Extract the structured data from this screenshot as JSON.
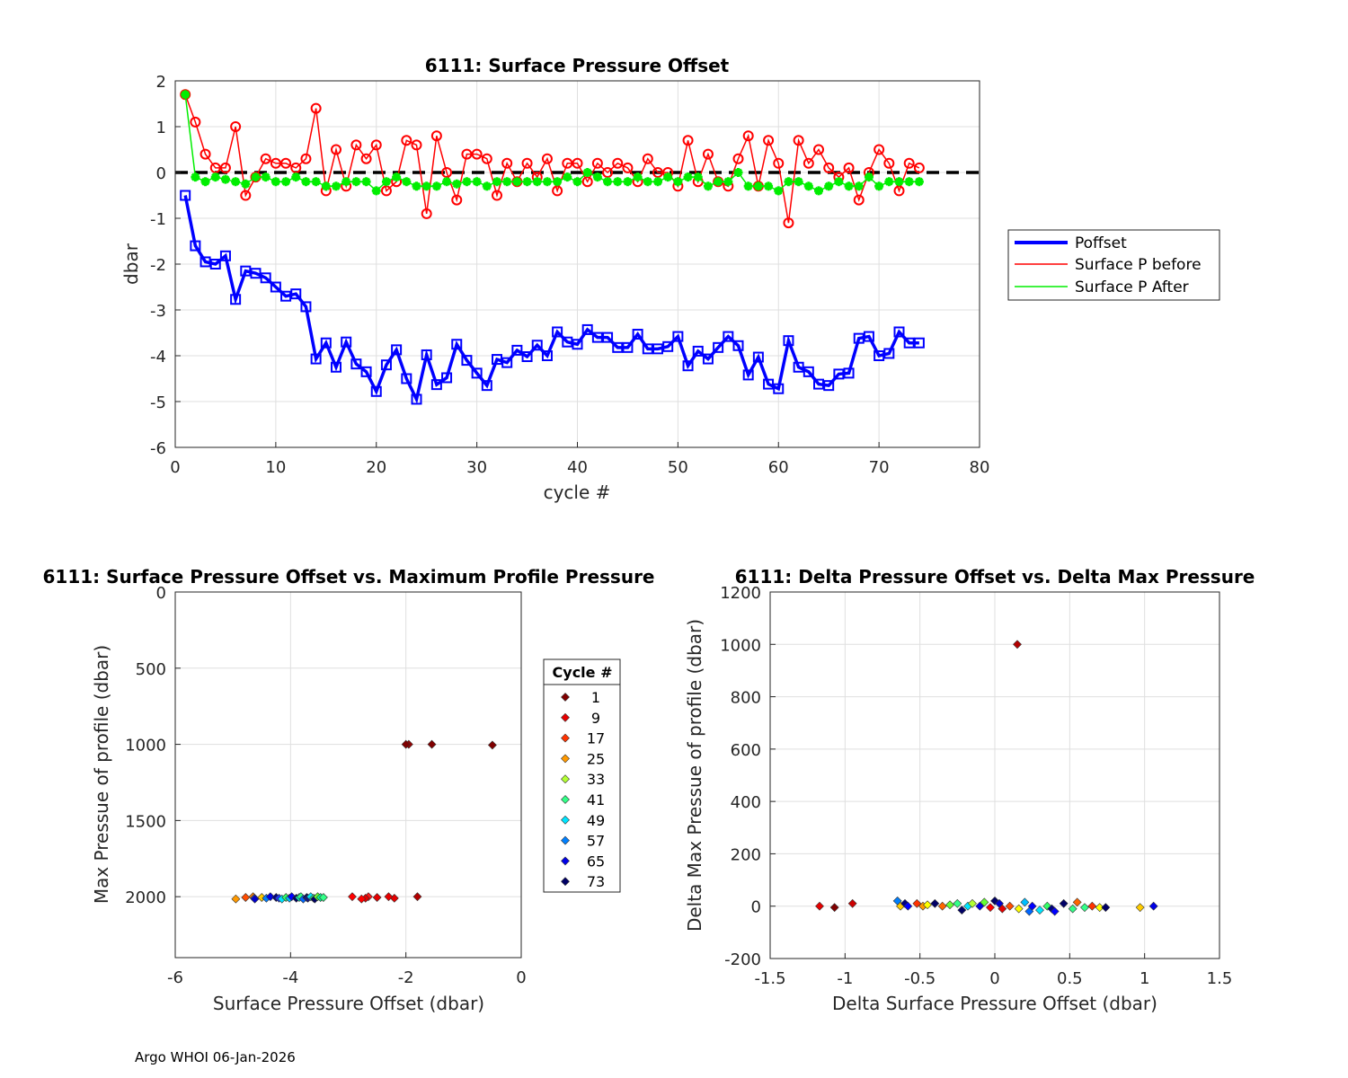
{
  "footer": "Argo WHOI 06-Jan-2026",
  "chart_data": [
    {
      "type": "line",
      "title": "6111: Surface Pressure Offset",
      "xlabel": "cycle #",
      "ylabel": "dbar",
      "xlim": [
        0,
        80
      ],
      "ylim": [
        -6,
        2
      ],
      "xticks": [
        0,
        10,
        20,
        30,
        40,
        50,
        60,
        70,
        80
      ],
      "yticks": [
        2,
        1,
        0,
        -1,
        -2,
        -3,
        -4,
        -5,
        -6
      ],
      "grid": true,
      "zero_line": 0,
      "legend_position": "right",
      "x": [
        1,
        2,
        3,
        4,
        5,
        6,
        7,
        8,
        9,
        10,
        11,
        12,
        13,
        14,
        15,
        16,
        17,
        18,
        19,
        20,
        21,
        22,
        23,
        24,
        25,
        26,
        27,
        28,
        29,
        30,
        31,
        32,
        33,
        34,
        35,
        36,
        37,
        38,
        39,
        40,
        41,
        42,
        43,
        44,
        45,
        46,
        47,
        48,
        49,
        50,
        51,
        52,
        53,
        54,
        55,
        56,
        57,
        58,
        59,
        60,
        61,
        62,
        63,
        64,
        65,
        66,
        67,
        68,
        69,
        70,
        71,
        72,
        73,
        74
      ],
      "series": [
        {
          "name": "Poffset",
          "color": "#0000ff",
          "marker": "square",
          "values": [
            -0.5,
            -1.6,
            -1.95,
            -2.0,
            -1.82,
            -2.77,
            -2.15,
            -2.2,
            -2.3,
            -2.5,
            -2.7,
            -2.65,
            -2.93,
            -4.07,
            -3.72,
            -4.25,
            -3.7,
            -4.18,
            -4.35,
            -4.78,
            -4.2,
            -3.87,
            -4.5,
            -4.95,
            -3.98,
            -4.63,
            -4.48,
            -3.75,
            -4.1,
            -4.38,
            -4.65,
            -4.08,
            -4.15,
            -3.88,
            -4.02,
            -3.77,
            -4.0,
            -3.48,
            -3.7,
            -3.75,
            -3.43,
            -3.6,
            -3.6,
            -3.82,
            -3.82,
            -3.53,
            -3.85,
            -3.85,
            -3.8,
            -3.58,
            -4.22,
            -3.9,
            -4.07,
            -3.82,
            -3.58,
            -3.78,
            -4.42,
            -4.03,
            -4.62,
            -4.72,
            -3.67,
            -4.25,
            -4.35,
            -4.62,
            -4.65,
            -4.4,
            -4.38,
            -3.62,
            -3.58,
            -4.0,
            -3.95,
            -3.48,
            -3.72,
            -3.72
          ]
        },
        {
          "name": "Surface P before",
          "color": "#ff0000",
          "marker": "circle",
          "values": [
            1.7,
            1.1,
            0.4,
            0.1,
            0.1,
            1.0,
            -0.5,
            -0.1,
            0.3,
            0.2,
            0.2,
            0.1,
            0.3,
            1.4,
            -0.4,
            0.5,
            -0.3,
            0.6,
            0.3,
            0.6,
            -0.4,
            -0.2,
            0.7,
            0.6,
            -0.9,
            0.8,
            0.0,
            -0.6,
            0.4,
            0.4,
            0.3,
            -0.5,
            0.2,
            -0.2,
            0.2,
            -0.1,
            0.3,
            -0.4,
            0.2,
            0.2,
            -0.2,
            0.2,
            0.0,
            0.2,
            0.1,
            -0.2,
            0.3,
            0.0,
            0.0,
            -0.3,
            0.7,
            -0.2,
            0.4,
            -0.2,
            -0.3,
            0.3,
            0.8,
            -0.3,
            0.7,
            0.2,
            -1.1,
            0.7,
            0.2,
            0.5,
            0.1,
            -0.1,
            0.1,
            -0.6,
            0.0,
            0.5,
            0.2,
            -0.4,
            0.2,
            0.1
          ]
        },
        {
          "name": "Surface P After",
          "color": "#00ee00",
          "marker": "star",
          "values": [
            1.7,
            -0.1,
            -0.2,
            -0.1,
            -0.15,
            -0.2,
            -0.25,
            -0.1,
            -0.1,
            -0.2,
            -0.2,
            -0.1,
            -0.2,
            -0.2,
            -0.3,
            -0.3,
            -0.2,
            -0.2,
            -0.2,
            -0.4,
            -0.2,
            -0.1,
            -0.2,
            -0.3,
            -0.3,
            -0.3,
            -0.2,
            -0.25,
            -0.2,
            -0.2,
            -0.3,
            -0.2,
            -0.2,
            -0.2,
            -0.2,
            -0.2,
            -0.2,
            -0.2,
            -0.1,
            -0.2,
            0.0,
            -0.1,
            -0.2,
            -0.2,
            -0.2,
            -0.1,
            -0.2,
            -0.2,
            -0.1,
            -0.2,
            -0.1,
            -0.1,
            -0.3,
            -0.2,
            -0.2,
            0.0,
            -0.3,
            -0.3,
            -0.3,
            -0.4,
            -0.2,
            -0.2,
            -0.3,
            -0.4,
            -0.3,
            -0.2,
            -0.3,
            -0.3,
            -0.1,
            -0.3,
            -0.2,
            -0.2,
            -0.2,
            -0.2
          ]
        }
      ]
    },
    {
      "type": "scatter",
      "title": "6111: Surface Pressure Offset vs. Maximum Profile Pressure",
      "xlabel": "Surface Pressure Offset (dbar)",
      "ylabel": "Max Pressue of profile (dbar)",
      "xlim": [
        -6,
        0
      ],
      "ylim": [
        2400,
        0
      ],
      "y_reversed": true,
      "xticks": [
        -6,
        -4,
        -2,
        0
      ],
      "yticks": [
        0,
        500,
        1000,
        1500,
        2000
      ],
      "grid": true,
      "legend_title": "Cycle #",
      "legend_position": "right",
      "legend": [
        {
          "label": "1",
          "color": "#800000"
        },
        {
          "label": "9",
          "color": "#e60000"
        },
        {
          "label": "17",
          "color": "#ff3300"
        },
        {
          "label": "25",
          "color": "#ff9900"
        },
        {
          "label": "33",
          "color": "#b3ff33"
        },
        {
          "label": "41",
          "color": "#33ff88"
        },
        {
          "label": "49",
          "color": "#00e5ff"
        },
        {
          "label": "57",
          "color": "#0080ff"
        },
        {
          "label": "65",
          "color": "#0000e6"
        },
        {
          "label": "73",
          "color": "#000066"
        }
      ],
      "points": [
        {
          "x": -0.5,
          "y": 1005,
          "color": "#800000"
        },
        {
          "x": -1.55,
          "y": 1000,
          "color": "#800000"
        },
        {
          "x": -1.95,
          "y": 1000,
          "color": "#990000"
        },
        {
          "x": -2.0,
          "y": 1000,
          "color": "#800000"
        },
        {
          "x": -1.8,
          "y": 2000,
          "color": "#b30000"
        },
        {
          "x": -2.2,
          "y": 2010,
          "color": "#e60000"
        },
        {
          "x": -2.3,
          "y": 2000,
          "color": "#e60000"
        },
        {
          "x": -2.5,
          "y": 2005,
          "color": "#e60000"
        },
        {
          "x": -2.65,
          "y": 2000,
          "color": "#ff1a1a"
        },
        {
          "x": -2.7,
          "y": 2010,
          "color": "#e60000"
        },
        {
          "x": -2.77,
          "y": 2015,
          "color": "#ff0000"
        },
        {
          "x": -2.93,
          "y": 2000,
          "color": "#ff0000"
        },
        {
          "x": -4.95,
          "y": 2015,
          "color": "#ff9900"
        },
        {
          "x": -4.78,
          "y": 2005,
          "color": "#ff4d00"
        },
        {
          "x": -4.65,
          "y": 2000,
          "color": "#ff8000"
        },
        {
          "x": -4.63,
          "y": 2010,
          "color": "#3366ff"
        },
        {
          "x": -4.62,
          "y": 2015,
          "color": "#0000cc"
        },
        {
          "x": -4.5,
          "y": 2005,
          "color": "#ffcc00"
        },
        {
          "x": -4.42,
          "y": 2010,
          "color": "#0080ff"
        },
        {
          "x": -4.35,
          "y": 2000,
          "color": "#0000e6"
        },
        {
          "x": -4.25,
          "y": 2005,
          "color": "#000080"
        },
        {
          "x": -4.2,
          "y": 2010,
          "color": "#1a33ff"
        },
        {
          "x": -4.15,
          "y": 2015,
          "color": "#00e5ff"
        },
        {
          "x": -4.08,
          "y": 2005,
          "color": "#33ff66"
        },
        {
          "x": -4.02,
          "y": 2010,
          "color": "#00bfff"
        },
        {
          "x": -3.98,
          "y": 2000,
          "color": "#0000ff"
        },
        {
          "x": -3.9,
          "y": 2010,
          "color": "#000066"
        },
        {
          "x": -3.85,
          "y": 2005,
          "color": "#00ffcc"
        },
        {
          "x": -3.82,
          "y": 2000,
          "color": "#33ff88"
        },
        {
          "x": -3.78,
          "y": 2015,
          "color": "#0066ff"
        },
        {
          "x": -3.72,
          "y": 2005,
          "color": "#000066"
        },
        {
          "x": -3.7,
          "y": 2010,
          "color": "#1a1a80"
        },
        {
          "x": -3.65,
          "y": 2000,
          "color": "#00e5ff"
        },
        {
          "x": -3.6,
          "y": 2010,
          "color": "#33ff88"
        },
        {
          "x": -3.58,
          "y": 2015,
          "color": "#000066"
        },
        {
          "x": -3.53,
          "y": 2000,
          "color": "#66ff33"
        },
        {
          "x": -3.48,
          "y": 2005,
          "color": "#00ff99"
        },
        {
          "x": -3.43,
          "y": 2005,
          "color": "#33ff88"
        }
      ]
    },
    {
      "type": "scatter",
      "title": "6111: Delta Pressure Offset vs. Delta Max Pressure",
      "xlabel": "Delta Surface Pressure Offset (dbar)",
      "ylabel": "Delta Max Pressue of profile (dbar)",
      "xlim": [
        -1.5,
        1.5
      ],
      "ylim": [
        -200,
        1200
      ],
      "xticks": [
        -1.5,
        -1,
        -0.5,
        0,
        0.5,
        1,
        1.5
      ],
      "yticks": [
        1200,
        1000,
        800,
        600,
        400,
        200,
        0,
        -200
      ],
      "grid": true,
      "points": [
        {
          "x": 0.15,
          "y": 1000,
          "color": "#b30000"
        },
        {
          "x": -1.17,
          "y": 0,
          "color": "#e60000"
        },
        {
          "x": -1.07,
          "y": -5,
          "color": "#800000"
        },
        {
          "x": -0.95,
          "y": 10,
          "color": "#cc0000"
        },
        {
          "x": -0.65,
          "y": 20,
          "color": "#0080ff"
        },
        {
          "x": -0.63,
          "y": 0,
          "color": "#ffcc00"
        },
        {
          "x": -0.6,
          "y": 10,
          "color": "#000080"
        },
        {
          "x": -0.58,
          "y": 0,
          "color": "#0000ff"
        },
        {
          "x": -0.52,
          "y": 10,
          "color": "#ff3300"
        },
        {
          "x": -0.48,
          "y": 0,
          "color": "#ff9900"
        },
        {
          "x": -0.45,
          "y": 5,
          "color": "#ffff00"
        },
        {
          "x": -0.4,
          "y": 10,
          "color": "#000066"
        },
        {
          "x": -0.35,
          "y": 0,
          "color": "#ff6600"
        },
        {
          "x": -0.3,
          "y": 5,
          "color": "#66ff33"
        },
        {
          "x": -0.25,
          "y": 10,
          "color": "#33ff88"
        },
        {
          "x": -0.22,
          "y": -15,
          "color": "#000066"
        },
        {
          "x": -0.18,
          "y": 0,
          "color": "#00e5ff"
        },
        {
          "x": -0.15,
          "y": 10,
          "color": "#b3ff33"
        },
        {
          "x": -0.1,
          "y": 0,
          "color": "#0000e6"
        },
        {
          "x": -0.07,
          "y": 15,
          "color": "#66ff33"
        },
        {
          "x": -0.03,
          "y": -5,
          "color": "#ff0000"
        },
        {
          "x": 0.0,
          "y": 20,
          "color": "#000066"
        },
        {
          "x": 0.03,
          "y": 10,
          "color": "#0000cc"
        },
        {
          "x": 0.05,
          "y": -10,
          "color": "#e60000"
        },
        {
          "x": 0.1,
          "y": 0,
          "color": "#ff4d00"
        },
        {
          "x": 0.16,
          "y": -10,
          "color": "#ffff00"
        },
        {
          "x": 0.2,
          "y": 15,
          "color": "#00bfff"
        },
        {
          "x": 0.23,
          "y": -20,
          "color": "#0066ff"
        },
        {
          "x": 0.25,
          "y": 0,
          "color": "#0000ff"
        },
        {
          "x": 0.3,
          "y": -15,
          "color": "#00e5ff"
        },
        {
          "x": 0.35,
          "y": 0,
          "color": "#33ff66"
        },
        {
          "x": 0.38,
          "y": -10,
          "color": "#000080"
        },
        {
          "x": 0.4,
          "y": -20,
          "color": "#0000ff"
        },
        {
          "x": 0.46,
          "y": 10,
          "color": "#000066"
        },
        {
          "x": 0.52,
          "y": -10,
          "color": "#33ff88"
        },
        {
          "x": 0.55,
          "y": 15,
          "color": "#ff6600"
        },
        {
          "x": 0.6,
          "y": -5,
          "color": "#33ff88"
        },
        {
          "x": 0.65,
          "y": 0,
          "color": "#ff3300"
        },
        {
          "x": 0.7,
          "y": -5,
          "color": "#ffff00"
        },
        {
          "x": 0.74,
          "y": -5,
          "color": "#000066"
        },
        {
          "x": 0.97,
          "y": -5,
          "color": "#ffcc00"
        },
        {
          "x": 1.06,
          "y": 0,
          "color": "#0000e6"
        }
      ]
    }
  ]
}
